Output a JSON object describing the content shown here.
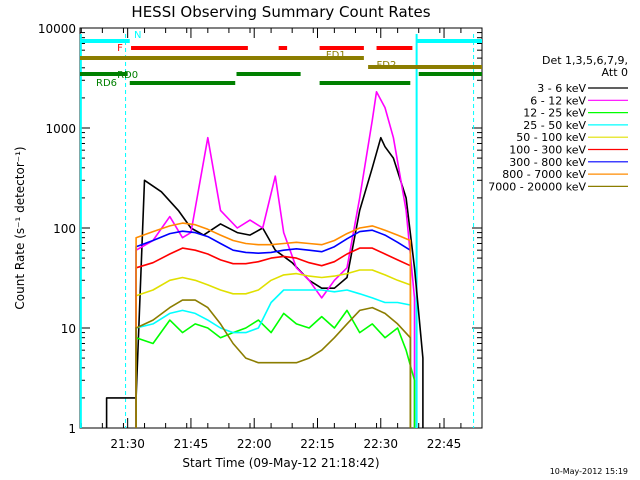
{
  "chart_data": {
    "type": "line",
    "title": "HESSI Observing Summary Count Rates",
    "xlabel": "Start Time (09-May-12 21:18:42)",
    "ylabel": "Count Rate (s⁻¹ detector⁻¹)",
    "yscale": "log",
    "ylim": [
      1,
      10000
    ],
    "xlim_minutes": [
      1278.7,
      1374
    ],
    "xticks": [
      {
        "t": 1290,
        "label": "21:30"
      },
      {
        "t": 1305,
        "label": "21:45"
      },
      {
        "t": 1320,
        "label": "22:00"
      },
      {
        "t": 1335,
        "label": "22:15"
      },
      {
        "t": 1350,
        "label": "22:30"
      },
      {
        "t": 1365,
        "label": "22:45"
      }
    ],
    "yticks": [
      {
        "v": 1,
        "label": "1"
      },
      {
        "v": 10,
        "label": "10"
      },
      {
        "v": 100,
        "label": "100"
      },
      {
        "v": 1000,
        "label": "1000"
      },
      {
        "v": 10000,
        "label": "10000"
      }
    ],
    "legend": {
      "placement": "right",
      "header": [
        "Det 1,3,5,6,7,9,",
        "Att 0"
      ]
    },
    "series": [
      {
        "name": "3 - 6 keV",
        "color": "#000000",
        "x": [
          1285,
          1292,
          1294,
          1298,
          1302,
          1305,
          1308,
          1312,
          1316,
          1319,
          1322,
          1325,
          1329,
          1333,
          1336,
          1339,
          1342,
          1345,
          1348,
          1350,
          1351,
          1353,
          1356,
          1358,
          1360
        ],
        "y": [
          2,
          2,
          300,
          230,
          150,
          100,
          85,
          110,
          90,
          85,
          100,
          60,
          45,
          30,
          25,
          25,
          32,
          150,
          400,
          800,
          650,
          500,
          200,
          40,
          5
        ]
      },
      {
        "name": "6 - 12 keV",
        "color": "#ff00ff",
        "x": [
          1292,
          1296,
          1300,
          1303,
          1305,
          1309,
          1312,
          1316,
          1319,
          1322,
          1325,
          1327,
          1330,
          1333,
          1336,
          1339,
          1342,
          1345,
          1348,
          1349,
          1351,
          1353,
          1356,
          1358
        ],
        "y": [
          60,
          75,
          130,
          80,
          90,
          800,
          150,
          100,
          120,
          100,
          330,
          90,
          40,
          30,
          20,
          30,
          40,
          200,
          1200,
          2300,
          1600,
          800,
          150,
          20
        ]
      },
      {
        "name": "12 - 25 keV",
        "color": "#00ff00",
        "x": [
          1292,
          1296,
          1300,
          1303,
          1306,
          1309,
          1312,
          1315,
          1318,
          1321,
          1324,
          1327,
          1330,
          1333,
          1336,
          1339,
          1342,
          1345,
          1348,
          1351,
          1354,
          1356,
          1358
        ],
        "y": [
          8,
          7,
          12,
          9,
          11,
          10,
          8,
          9,
          10,
          12,
          9,
          14,
          11,
          10,
          13,
          10,
          15,
          9,
          11,
          8,
          10,
          6,
          3
        ]
      },
      {
        "name": "25 - 50 keV",
        "color": "#00ffff",
        "x": [
          1292,
          1296,
          1300,
          1303,
          1306,
          1309,
          1312,
          1315,
          1318,
          1321,
          1324,
          1327,
          1330,
          1333,
          1336,
          1339,
          1342,
          1345,
          1348,
          1351,
          1354,
          1357
        ],
        "y": [
          10,
          11,
          14,
          15,
          14,
          12,
          10,
          9,
          9,
          10,
          18,
          24,
          24,
          24,
          24,
          23,
          24,
          22,
          20,
          18,
          18,
          17
        ]
      },
      {
        "name": "50 - 100 keV",
        "color": "#e0e000",
        "x": [
          1292,
          1296,
          1300,
          1303,
          1306,
          1309,
          1312,
          1315,
          1318,
          1321,
          1324,
          1327,
          1330,
          1333,
          1336,
          1339,
          1342,
          1345,
          1348,
          1351,
          1354,
          1357
        ],
        "y": [
          21,
          24,
          30,
          32,
          30,
          27,
          24,
          22,
          22,
          24,
          30,
          34,
          35,
          33,
          32,
          33,
          35,
          38,
          38,
          34,
          30,
          27
        ]
      },
      {
        "name": "100 - 300 keV",
        "color": "#ff0000",
        "x": [
          1292,
          1296,
          1300,
          1303,
          1306,
          1309,
          1312,
          1315,
          1318,
          1321,
          1324,
          1327,
          1330,
          1333,
          1336,
          1339,
          1342,
          1345,
          1348,
          1351,
          1354,
          1357
        ],
        "y": [
          40,
          45,
          55,
          63,
          60,
          55,
          48,
          44,
          44,
          46,
          50,
          52,
          50,
          45,
          42,
          46,
          55,
          63,
          63,
          55,
          48,
          42
        ]
      },
      {
        "name": "300 - 800 keV",
        "color": "#0000ff",
        "x": [
          1292,
          1296,
          1300,
          1303,
          1306,
          1309,
          1312,
          1315,
          1318,
          1321,
          1324,
          1327,
          1330,
          1333,
          1336,
          1339,
          1342,
          1345,
          1348,
          1351,
          1354,
          1357
        ],
        "y": [
          65,
          75,
          88,
          93,
          90,
          82,
          70,
          60,
          57,
          56,
          57,
          60,
          62,
          60,
          58,
          65,
          78,
          92,
          95,
          85,
          72,
          60
        ]
      },
      {
        "name": "800 - 7000 keV",
        "color": "#ff8c00",
        "x": [
          1292,
          1296,
          1300,
          1303,
          1306,
          1309,
          1312,
          1315,
          1318,
          1321,
          1324,
          1327,
          1330,
          1333,
          1336,
          1339,
          1342,
          1345,
          1348,
          1351,
          1354,
          1357
        ],
        "y": [
          80,
          92,
          105,
          112,
          108,
          97,
          85,
          75,
          70,
          68,
          68,
          70,
          72,
          70,
          68,
          75,
          88,
          100,
          105,
          95,
          85,
          75
        ]
      },
      {
        "name": "7000 - 20000 keV",
        "color": "#8b7d00",
        "x": [
          1292,
          1296,
          1300,
          1303,
          1306,
          1309,
          1312,
          1315,
          1318,
          1321,
          1324,
          1327,
          1330,
          1333,
          1336,
          1339,
          1342,
          1345,
          1348,
          1351,
          1354,
          1357
        ],
        "y": [
          10,
          12,
          16,
          19,
          19,
          16,
          11,
          7,
          5,
          4.5,
          4.5,
          4.5,
          4.5,
          5,
          6,
          8,
          11,
          15,
          16,
          14,
          11,
          8
        ]
      }
    ],
    "flags": [
      {
        "label": "N",
        "color": "#00ffff",
        "segments": [
          [
            1278.7,
            1290.5
          ],
          [
            1358.5,
            1374
          ]
        ]
      },
      {
        "label": "F",
        "color": "#ff0000",
        "segments": [
          [
            1290.8,
            1318.5
          ],
          [
            1325.8,
            1327.8
          ],
          [
            1335.5,
            1346
          ],
          [
            1349,
            1357.5
          ]
        ]
      },
      {
        "label": "FD1",
        "color": "#8b7d00",
        "segments": [
          [
            1278.7,
            1346
          ]
        ]
      },
      {
        "label": "FD2",
        "color": "#8b7d00",
        "segments": [
          [
            1347,
            1374
          ]
        ]
      },
      {
        "label": "RD0",
        "color": "#008000",
        "segments": [
          [
            1278.7,
            1290
          ],
          [
            1315.8,
            1331
          ],
          [
            1359,
            1374
          ]
        ]
      },
      {
        "label": "RD6",
        "color": "#008000",
        "segments": [
          [
            1290.5,
            1315.5
          ],
          [
            1335.5,
            1357
          ]
        ]
      }
    ],
    "saa_markers_minutes": [
      1278.9,
      1289.5,
      1358.5,
      1372
    ],
    "footer_timestamp": "10-May-2012 15:19"
  }
}
